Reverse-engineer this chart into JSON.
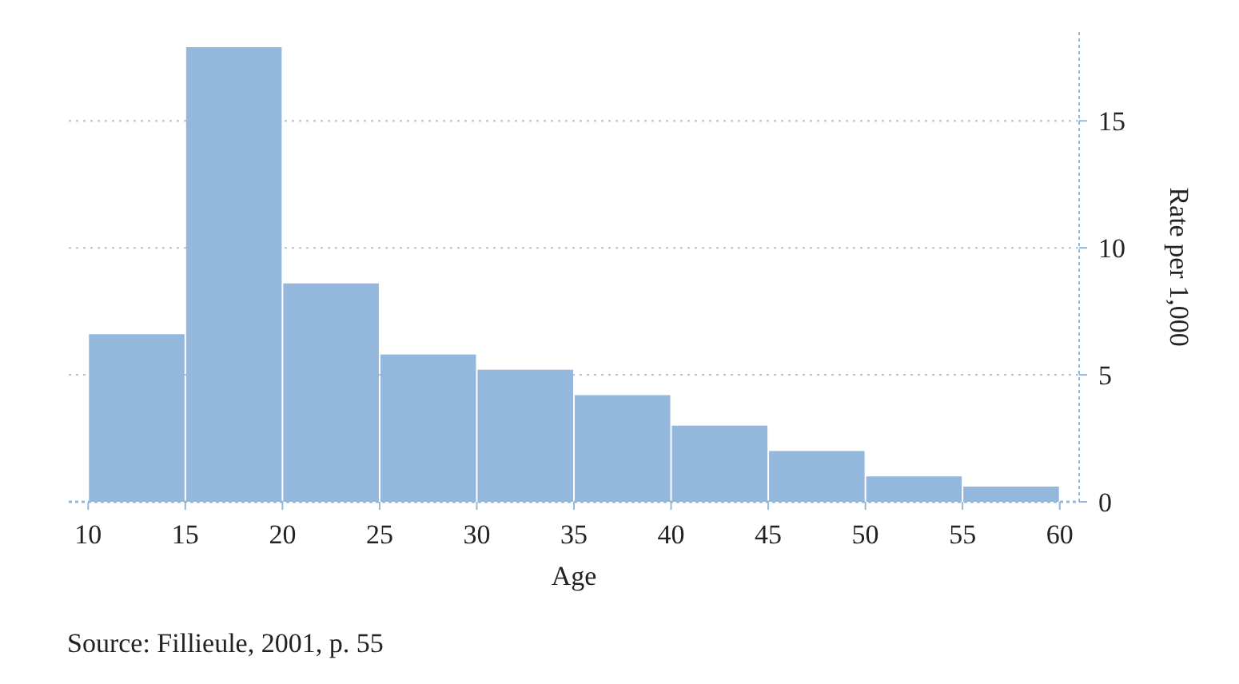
{
  "chart_data": {
    "type": "histogram",
    "xlabel": "Age",
    "ylabel": "Rate per 1,000",
    "bins": [
      10,
      15,
      20,
      25,
      30,
      35,
      40,
      45,
      50,
      55,
      60
    ],
    "values": [
      6.6,
      17.9,
      8.6,
      5.8,
      5.2,
      4.2,
      3.0,
      2.0,
      1.0,
      0.6
    ],
    "color": "#93b8dc",
    "xlim": [
      9,
      61
    ],
    "xticks": [
      10,
      15,
      20,
      25,
      30,
      35,
      40,
      45,
      50,
      55,
      60
    ],
    "ylim": [
      0,
      18.5
    ],
    "yticks": [
      0,
      5,
      10,
      15
    ],
    "grid": "y",
    "annotations": [
      "Source: Fillieule, 2001, p. 55"
    ]
  }
}
